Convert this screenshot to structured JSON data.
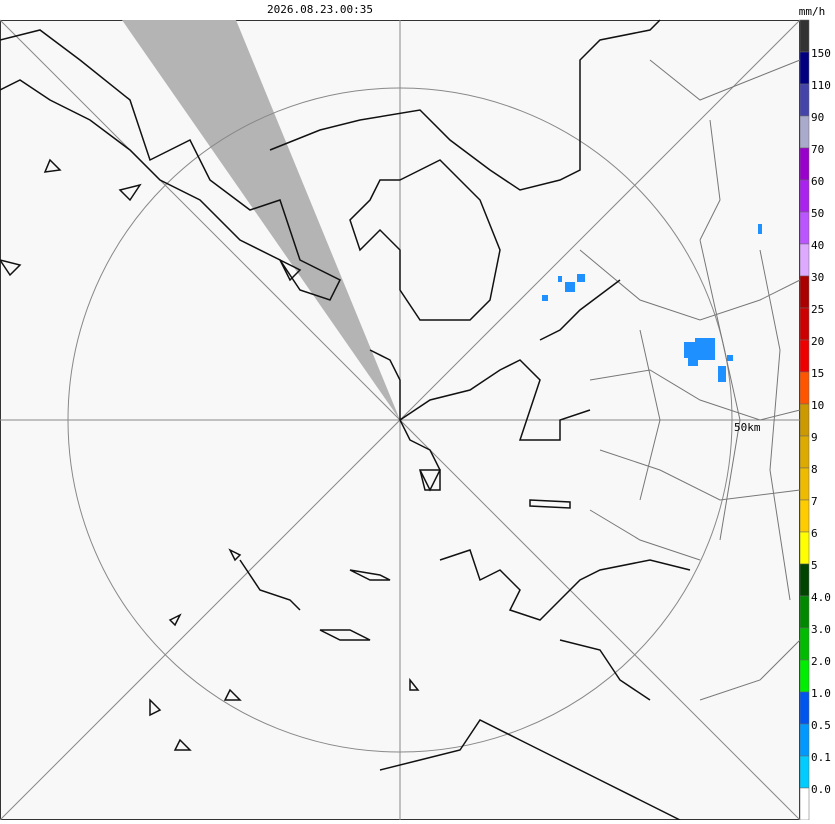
{
  "header": {
    "timestamp": "2026.08.23.00:35",
    "unit": "mm/h"
  },
  "map": {
    "range_label": "50km"
  },
  "legend": {
    "labels": [
      "150",
      "110",
      "90",
      "70",
      "60",
      "50",
      "40",
      "30",
      "25",
      "20",
      "15",
      "10",
      "9",
      "8",
      "7",
      "6",
      "5",
      "4.0",
      "3.0",
      "2.0",
      "1.0",
      "0.5",
      "0.1",
      "0.0"
    ],
    "colors": [
      "#333333",
      "#000080",
      "#4444aa",
      "#aaaacc",
      "#9900cc",
      "#aa22ee",
      "#bb55ff",
      "#ddaaff",
      "#aa0000",
      "#cc0000",
      "#ee0000",
      "#ff5500",
      "#cc9900",
      "#ddaa00",
      "#eebb00",
      "#ffcc00",
      "#ffff00",
      "#004400",
      "#008800",
      "#00bb00",
      "#00ee00",
      "#0055ee",
      "#0099ff",
      "#00ccff",
      "#ffffff"
    ]
  }
}
